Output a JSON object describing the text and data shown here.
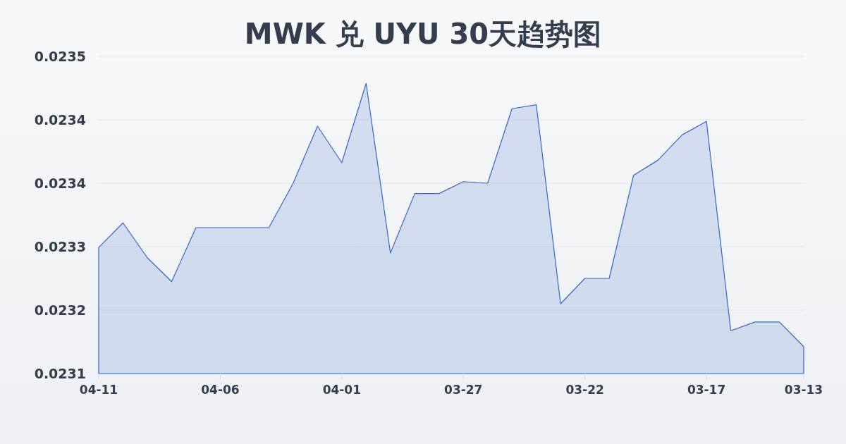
{
  "chart_data": {
    "type": "area",
    "title": "MWK 兑 UYU 30天趋势图",
    "categories": [
      "04-11",
      null,
      null,
      null,
      null,
      "04-06",
      null,
      null,
      null,
      null,
      "04-01",
      null,
      null,
      null,
      null,
      "03-27",
      null,
      null,
      null,
      null,
      "03-22",
      null,
      null,
      null,
      null,
      "03-17",
      null,
      null,
      null,
      "03-13"
    ],
    "values": [
      0.023271,
      0.023302,
      0.023258,
      0.023228,
      0.023296,
      0.023296,
      0.023296,
      0.023296,
      0.023352,
      0.023424,
      0.023378,
      0.023478,
      0.023264,
      0.023339,
      0.023339,
      0.023354,
      0.023352,
      0.023446,
      0.023451,
      0.0232,
      0.023232,
      0.023232,
      0.023362,
      0.023381,
      0.023413,
      0.02343,
      0.023166,
      0.023177,
      0.023177,
      0.023146
    ],
    "color": "#3366cc",
    "ylim": [
      0.023112,
      0.023512
    ],
    "yticks": [
      {
        "value": 0.023112,
        "label": "0.0231"
      },
      {
        "value": 0.023192,
        "label": "0.0232"
      },
      {
        "value": 0.023272,
        "label": "0.0233"
      },
      {
        "value": 0.023352,
        "label": "0.0234"
      },
      {
        "value": 0.023432,
        "label": "0.0234"
      },
      {
        "value": 0.023512,
        "label": "0.0235"
      }
    ],
    "grid": "y"
  }
}
